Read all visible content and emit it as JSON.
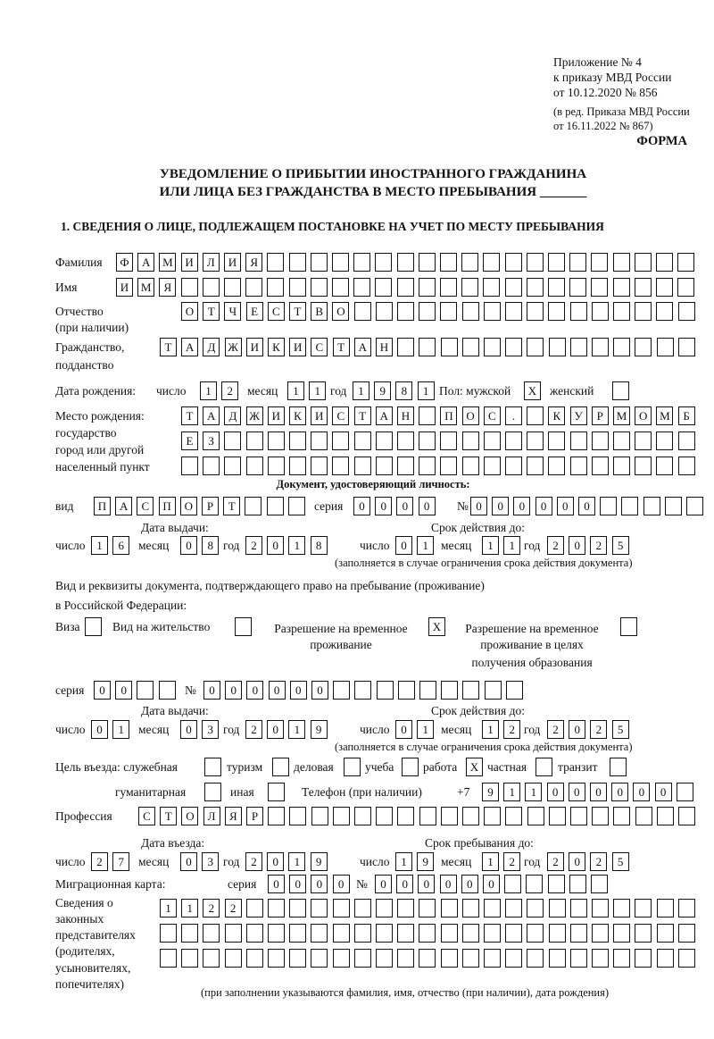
{
  "header": {
    "appendix_line1": "Приложение № 4",
    "appendix_line2": "к приказу МВД России",
    "appendix_line3": "от 10.12.2020 № 856",
    "edition_line1": "(в ред. Приказа МВД России",
    "edition_line2": "от 16.11.2022 № 867)",
    "form_label": "ФОРМА",
    "title_line1": "УВЕДОМЛЕНИЕ О ПРИБЫТИИ ИНОСТРАННОГО ГРАЖДАНИНА",
    "title_line2": "ИЛИ ЛИЦА БЕЗ ГРАЖДАНСТВА В МЕСТО ПРЕБЫВАНИЯ _______",
    "section1": "1. СВЕДЕНИЯ О ЛИЦЕ, ПОДЛЕЖАЩЕМ ПОСТАНОВКЕ НА УЧЕТ ПО МЕСТУ ПРЕБЫВАНИЯ"
  },
  "labels": {
    "surname": "Фамилия",
    "name": "Имя",
    "patronymic1": "Отчество",
    "patronymic2": "(при наличии)",
    "citizenship1": "Гражданство,",
    "citizenship2": "подданство",
    "birth_date": "Дата рождения:",
    "day": "число",
    "month": "месяц",
    "year": "год",
    "sex": "Пол: мужской",
    "female": "женский",
    "birthplace1": "Место рождения:",
    "birthplace2": "государство",
    "birthplace3": "город или другой",
    "birthplace4": "населенный пункт",
    "id_doc": "Документ, удостоверяющий личность:",
    "kind": "вид",
    "series": "серия",
    "number": "№",
    "issue_date": "Дата выдачи:",
    "valid_until": "Срок действия до:",
    "validity_note": "(заполняется в случае ограничения срока действия документа)",
    "stay_doc1": "Вид и реквизиты документа, подтверждающего право на пребывание (проживание)",
    "stay_doc2": "в Российской Федерации:",
    "visa": "Виза",
    "residence": "Вид на жительство",
    "trp1": "Разрешение на временное",
    "trp2": "проживание",
    "trp_edu1": "Разрешение на временное",
    "trp_edu2": "проживание в целях",
    "trp_edu3": "получения образования",
    "purpose": "Цель въезда: служебная",
    "tourism": "туризм",
    "business": "деловая",
    "study": "учеба",
    "work": "работа",
    "private": "частная",
    "transit": "транзит",
    "humanitarian": "гуманитарная",
    "other": "иная",
    "phone": "Телефон (при наличии)",
    "phone_prefix": "+7",
    "profession": "Профессия",
    "entry_date": "Дата въезда:",
    "stay_until": "Срок пребывания до:",
    "migration_card": "Миграционная карта:",
    "reps1": "Сведения о",
    "reps2": "законных",
    "reps3": "представителях",
    "reps4": "(родителях,",
    "reps5": "усыновителях,",
    "reps6": "попечителях)",
    "reps_note": "(при заполнении указываются фамилия, имя, отчество (при наличии), дата рождения)"
  },
  "fields": {
    "surname": "ФАМИЛИЯ",
    "name": "ИМЯ",
    "patronymic": "ОТЧЕСТВО",
    "citizenship": "ТАДЖИКИСТАН",
    "birth_day": "12",
    "birth_month": "11",
    "birth_year": "1981",
    "sex_male": "X",
    "sex_female": "",
    "birthplace_1": "ТАДЖИКИСТАН ПОС. КУРМОМБ",
    "birthplace_2": "ЕЗ",
    "birthplace_3": "",
    "doc_kind": "ПАСПОРТ",
    "doc_series": "0000",
    "doc_number": "000000",
    "doc_issue_day": "16",
    "doc_issue_month": "08",
    "doc_issue_year": "2018",
    "doc_valid_day": "01",
    "doc_valid_month": "11",
    "doc_valid_year": "2025",
    "visa": "",
    "residence": "",
    "trp": "X",
    "trp_edu": "",
    "stay_series": "00",
    "stay_number": "000000",
    "stay_issue_day": "01",
    "stay_issue_month": "03",
    "stay_issue_year": "2019",
    "stay_valid_day": "01",
    "stay_valid_month": "12",
    "stay_valid_year": "2025",
    "purpose_service": "",
    "purpose_tourism": "",
    "purpose_business": "",
    "purpose_study": "",
    "purpose_work": "X",
    "purpose_private": "",
    "purpose_transit": "",
    "purpose_humanitarian": "",
    "purpose_other": "",
    "phone": "911000000",
    "profession": "СТОЛЯР",
    "entry_day": "27",
    "entry_month": "03",
    "entry_year": "2019",
    "stay_until_day": "19",
    "stay_until_month": "12",
    "stay_until_year": "2025",
    "mc_series": "0000",
    "mc_number": "000000",
    "reps_1": "1122",
    "reps_2": "",
    "reps_3": ""
  }
}
